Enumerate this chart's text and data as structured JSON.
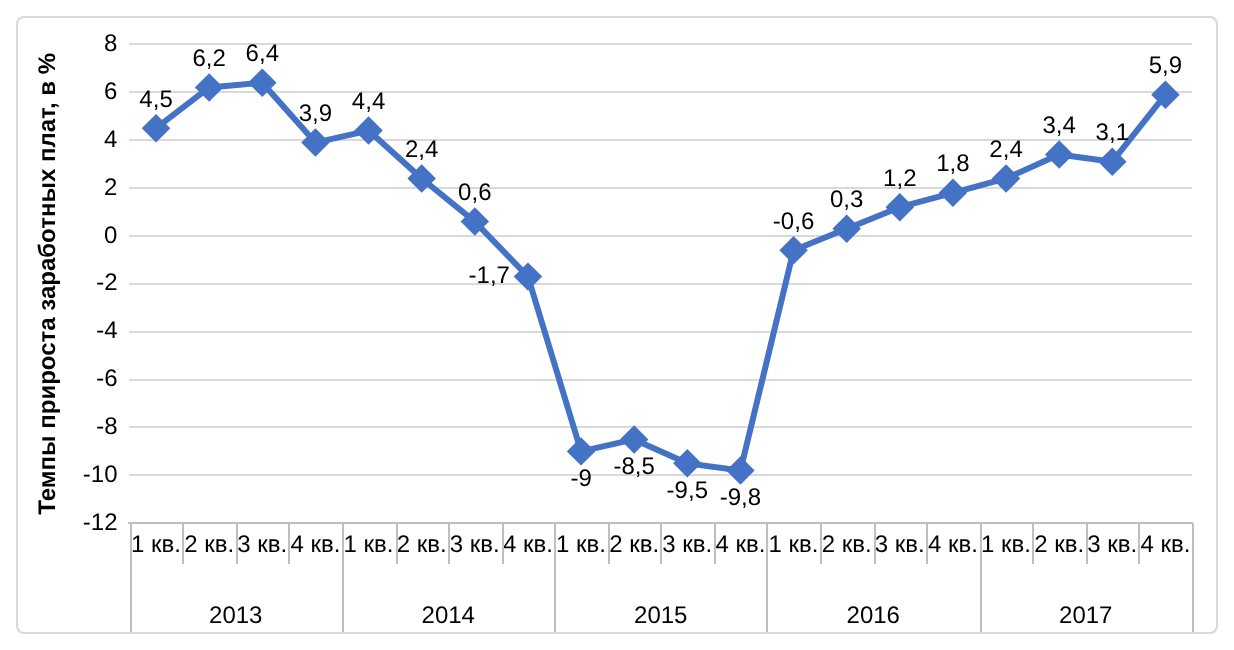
{
  "chart_data": {
    "type": "line",
    "ylabel": "Темпы прироста заработных плат, в %",
    "categories": [
      "1 кв.",
      "2 кв.",
      "3 кв.",
      "4 кв.",
      "1 кв.",
      "2 кв.",
      "3 кв.",
      "4 кв.",
      "1 кв.",
      "2 кв.",
      "3 кв.",
      "4 кв.",
      "1 кв.",
      "2 кв.",
      "3 кв.",
      "4 кв.",
      "1 кв.",
      "2 кв.",
      "3 кв.",
      "4 кв."
    ],
    "series": [
      {
        "color": "#4472c4",
        "values": [
          4.5,
          6.2,
          6.4,
          3.9,
          4.4,
          2.4,
          0.6,
          -1.7,
          -9,
          -8.5,
          -9.5,
          -9.8,
          -0.6,
          0.3,
          1.2,
          1.8,
          2.4,
          3.4,
          3.1,
          5.9
        ],
        "value_labels": [
          "4,5",
          "6,2",
          "6,4",
          "3,9",
          "4,4",
          "2,4",
          "0,6",
          "-1,7",
          "-9",
          "-8,5",
          "-9,5",
          "-9,8",
          "-0,6",
          "0,3",
          "1,2",
          "1,8",
          "2,4",
          "3,4",
          "3,1",
          "5,9"
        ]
      }
    ],
    "annotations": [
      "2013",
      "2014",
      "2015",
      "2016",
      "2017"
    ],
    "ylim": [
      -12,
      8
    ],
    "yticks": [
      -12,
      -10,
      -8,
      -6,
      -4,
      -2,
      0,
      2,
      4,
      6,
      8
    ],
    "grid": "y",
    "legend": false,
    "marker": "diamond",
    "line_style": "solid"
  }
}
